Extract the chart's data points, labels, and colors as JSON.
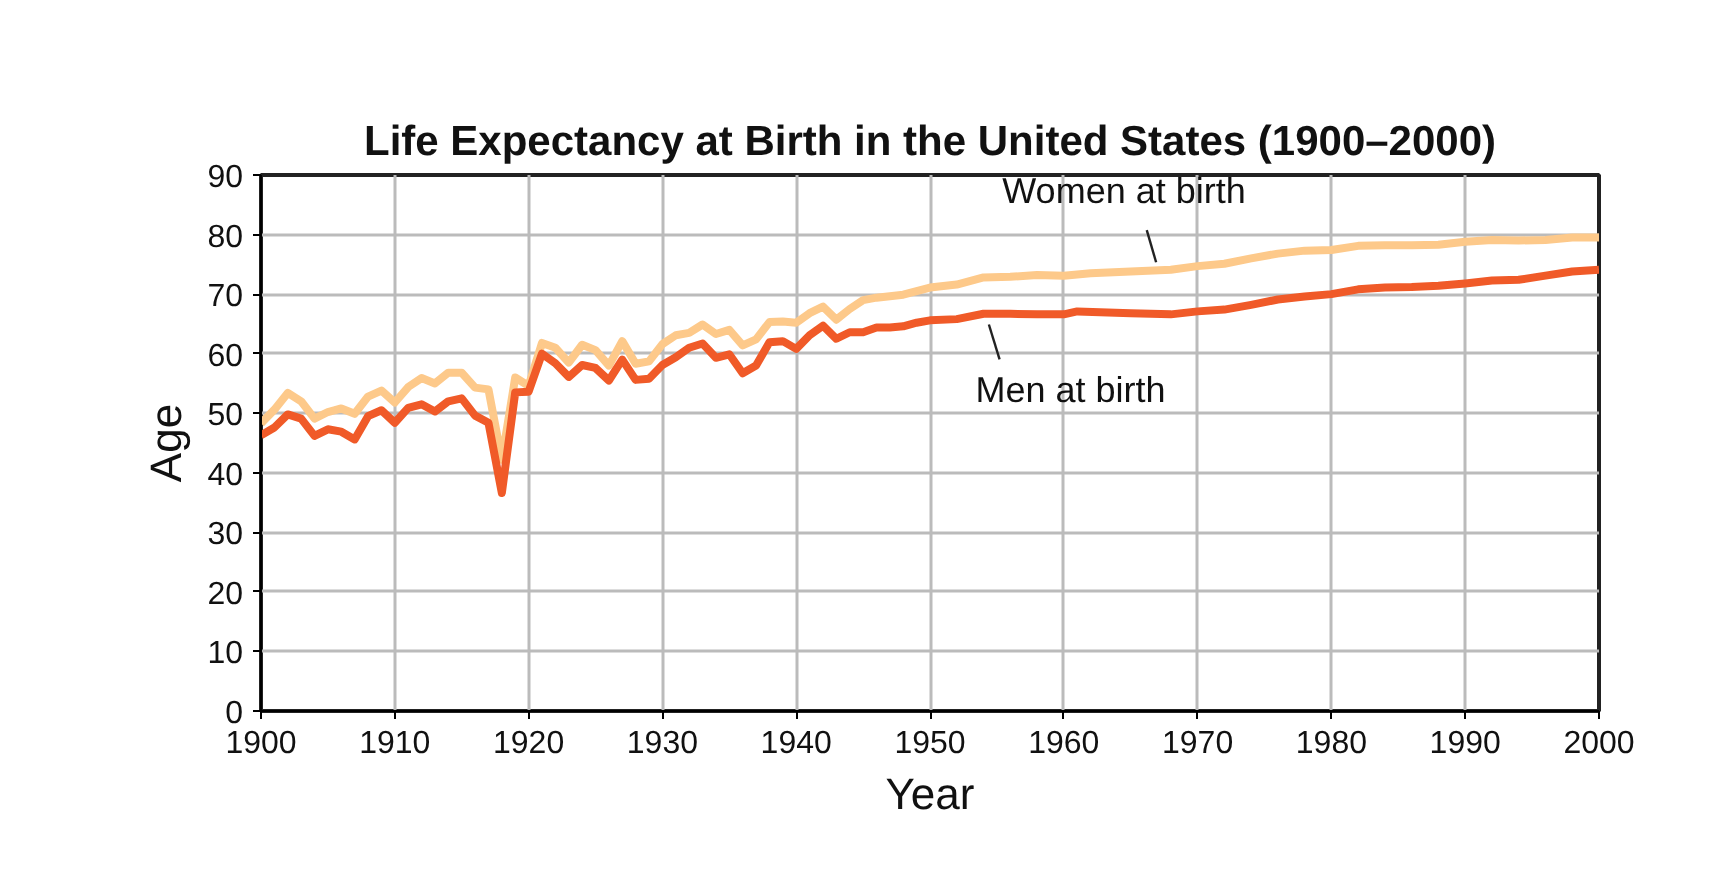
{
  "chart_data": {
    "type": "line",
    "title": "Life Expectancy at Birth in the United States (1900–2000)",
    "xlabel": "Year",
    "ylabel": "Age",
    "xlim": [
      1900,
      2000
    ],
    "ylim": [
      0,
      90
    ],
    "xticks": [
      1900,
      1910,
      1920,
      1930,
      1940,
      1950,
      1960,
      1970,
      1980,
      1990,
      2000
    ],
    "yticks": [
      0,
      10,
      20,
      30,
      40,
      50,
      60,
      70,
      80,
      90
    ],
    "grid": true,
    "legend": false,
    "marker": "none",
    "line_style": "solid",
    "series": [
      {
        "name": "Women at birth",
        "color": "#fdc98a",
        "x": [
          1900,
          1901,
          1902,
          1903,
          1904,
          1905,
          1906,
          1907,
          1908,
          1909,
          1910,
          1911,
          1912,
          1913,
          1914,
          1915,
          1916,
          1917,
          1918,
          1919,
          1920,
          1921,
          1922,
          1923,
          1924,
          1925,
          1926,
          1927,
          1928,
          1929,
          1930,
          1931,
          1932,
          1933,
          1934,
          1935,
          1936,
          1937,
          1938,
          1939,
          1940,
          1941,
          1942,
          1943,
          1944,
          1945,
          1946,
          1948,
          1950,
          1952,
          1954,
          1956,
          1958,
          1960,
          1962,
          1965,
          1968,
          1970,
          1972,
          1974,
          1976,
          1978,
          1980,
          1982,
          1984,
          1986,
          1988,
          1990,
          1992,
          1994,
          1996,
          1998,
          2000
        ],
        "values": [
          48.3,
          50.6,
          53.4,
          52.0,
          49.1,
          50.2,
          50.8,
          49.9,
          52.8,
          53.8,
          51.8,
          54.4,
          55.9,
          55.0,
          56.8,
          56.8,
          54.3,
          54.0,
          42.2,
          56.0,
          54.6,
          61.8,
          61.0,
          58.5,
          61.5,
          60.6,
          58.0,
          62.1,
          58.3,
          58.7,
          61.6,
          63.1,
          63.5,
          64.9,
          63.3,
          64.0,
          61.4,
          62.4,
          65.3,
          65.4,
          65.2,
          66.8,
          67.9,
          65.7,
          67.5,
          69.0,
          69.4,
          69.9,
          71.1,
          71.6,
          72.8,
          72.9,
          73.2,
          73.1,
          73.5,
          73.8,
          74.1,
          74.7,
          75.1,
          76.0,
          76.8,
          77.3,
          77.4,
          78.1,
          78.2,
          78.2,
          78.3,
          78.8,
          79.1,
          79.0,
          79.1,
          79.5,
          79.5
        ]
      },
      {
        "name": "Men at birth",
        "color": "#f05a28",
        "x": [
          1900,
          1901,
          1902,
          1903,
          1904,
          1905,
          1906,
          1907,
          1908,
          1909,
          1910,
          1911,
          1912,
          1913,
          1914,
          1915,
          1916,
          1917,
          1918,
          1919,
          1920,
          1921,
          1922,
          1923,
          1924,
          1925,
          1926,
          1927,
          1928,
          1929,
          1930,
          1931,
          1932,
          1933,
          1934,
          1935,
          1936,
          1937,
          1938,
          1939,
          1940,
          1941,
          1942,
          1943,
          1944,
          1945,
          1946,
          1947,
          1948,
          1949,
          1950,
          1952,
          1954,
          1956,
          1958,
          1960,
          1961,
          1965,
          1968,
          1970,
          1972,
          1974,
          1976,
          1978,
          1980,
          1982,
          1984,
          1986,
          1988,
          1990,
          1992,
          1994,
          1996,
          1998,
          2000
        ],
        "values": [
          46.3,
          47.6,
          49.8,
          49.1,
          46.2,
          47.3,
          46.9,
          45.6,
          49.5,
          50.5,
          48.4,
          50.9,
          51.5,
          50.3,
          52.0,
          52.5,
          49.6,
          48.4,
          36.6,
          53.5,
          53.6,
          60.0,
          58.4,
          56.1,
          58.1,
          57.6,
          55.5,
          59.0,
          55.6,
          55.8,
          58.1,
          59.4,
          61.0,
          61.7,
          59.3,
          59.9,
          56.7,
          58.0,
          61.9,
          62.1,
          60.8,
          63.1,
          64.7,
          62.5,
          63.6,
          63.6,
          64.4,
          64.4,
          64.6,
          65.2,
          65.6,
          65.8,
          66.7,
          66.7,
          66.6,
          66.6,
          67.1,
          66.8,
          66.6,
          67.1,
          67.4,
          68.2,
          69.1,
          69.6,
          70.0,
          70.8,
          71.1,
          71.2,
          71.4,
          71.8,
          72.3,
          72.4,
          73.1,
          73.8,
          74.1
        ]
      }
    ]
  }
}
